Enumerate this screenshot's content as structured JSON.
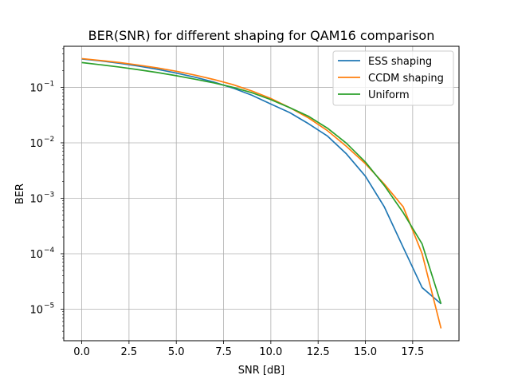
{
  "chart_data": {
    "type": "line",
    "title": "BER(SNR) for different shaping for QAM16 comparison",
    "xlabel": "SNR [dB]",
    "ylabel": "BER",
    "xlim": [
      -0.95,
      19.95
    ],
    "ylim": [
      2.7e-06,
      0.55
    ],
    "yscale": "log",
    "grid": true,
    "legend_position": "top-right",
    "x_ticks": [
      {
        "value": 0,
        "label": "0.0"
      },
      {
        "value": 2.5,
        "label": "2.5"
      },
      {
        "value": 5,
        "label": "5.0"
      },
      {
        "value": 7.5,
        "label": "7.5"
      },
      {
        "value": 10,
        "label": "10.0"
      },
      {
        "value": 12.5,
        "label": "12.5"
      },
      {
        "value": 15,
        "label": "15.0"
      },
      {
        "value": 17.5,
        "label": "17.5"
      }
    ],
    "y_ticks": [
      {
        "value": 1e-05,
        "base": "10",
        "exp": "−5"
      },
      {
        "value": 0.0001,
        "base": "10",
        "exp": "−4"
      },
      {
        "value": 0.001,
        "base": "10",
        "exp": "−3"
      },
      {
        "value": 0.01,
        "base": "10",
        "exp": "−2"
      },
      {
        "value": 0.1,
        "base": "10",
        "exp": "−1"
      }
    ],
    "x": [
      0,
      1,
      2,
      3,
      4,
      5,
      6,
      7,
      8,
      9,
      10,
      11,
      12,
      13,
      14,
      15,
      16,
      17,
      18,
      19
    ],
    "series": [
      {
        "name": "ESS shaping",
        "color": "#1f77b4",
        "values": [
          0.325,
          0.3,
          0.272,
          0.242,
          0.212,
          0.181,
          0.152,
          0.124,
          0.097,
          0.072,
          0.05,
          0.035,
          0.022,
          0.0132,
          0.0063,
          0.0025,
          0.0007,
          0.00013,
          2.45e-05,
          1.25e-05
        ]
      },
      {
        "name": "CCDM shaping",
        "color": "#ff7f0e",
        "values": [
          0.33,
          0.305,
          0.28,
          0.252,
          0.224,
          0.195,
          0.166,
          0.138,
          0.112,
          0.086,
          0.063,
          0.043,
          0.028,
          0.0165,
          0.0086,
          0.0042,
          0.0018,
          0.0007,
          0.0001,
          4.5e-06
        ]
      },
      {
        "name": "Uniform",
        "color": "#2ca02c",
        "values": [
          0.28,
          0.255,
          0.232,
          0.208,
          0.185,
          0.162,
          0.14,
          0.12,
          0.1,
          0.08,
          0.06,
          0.043,
          0.03,
          0.0183,
          0.0098,
          0.0045,
          0.0017,
          0.00055,
          0.00015,
          1.25e-05
        ]
      }
    ]
  }
}
